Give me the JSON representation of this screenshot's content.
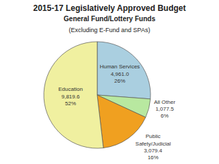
{
  "chart_data": {
    "type": "pie",
    "title": "2015-17 Legislatively Approved Budget\nGeneral Fund/Lottery Funds\n(Excluding E-Fund and SPAs)",
    "categories": [
      "Human Services",
      "All Other",
      "Public\nSafety/Judicial",
      "Education"
    ],
    "values": [
      4961.0,
      1077.5,
      3079.4,
      9819.6
    ],
    "value_labels": [
      "4,961.0",
      "1,077.5",
      "3,079.4",
      "9,819.6"
    ],
    "shares": [
      26,
      6,
      16,
      52
    ],
    "share_labels": [
      "26%",
      "6%",
      "16%",
      "52%"
    ],
    "colors": [
      "#aacfe0",
      "#b8e8a0",
      "#f0a020",
      "#f0f0a0"
    ],
    "data_labels": true
  }
}
